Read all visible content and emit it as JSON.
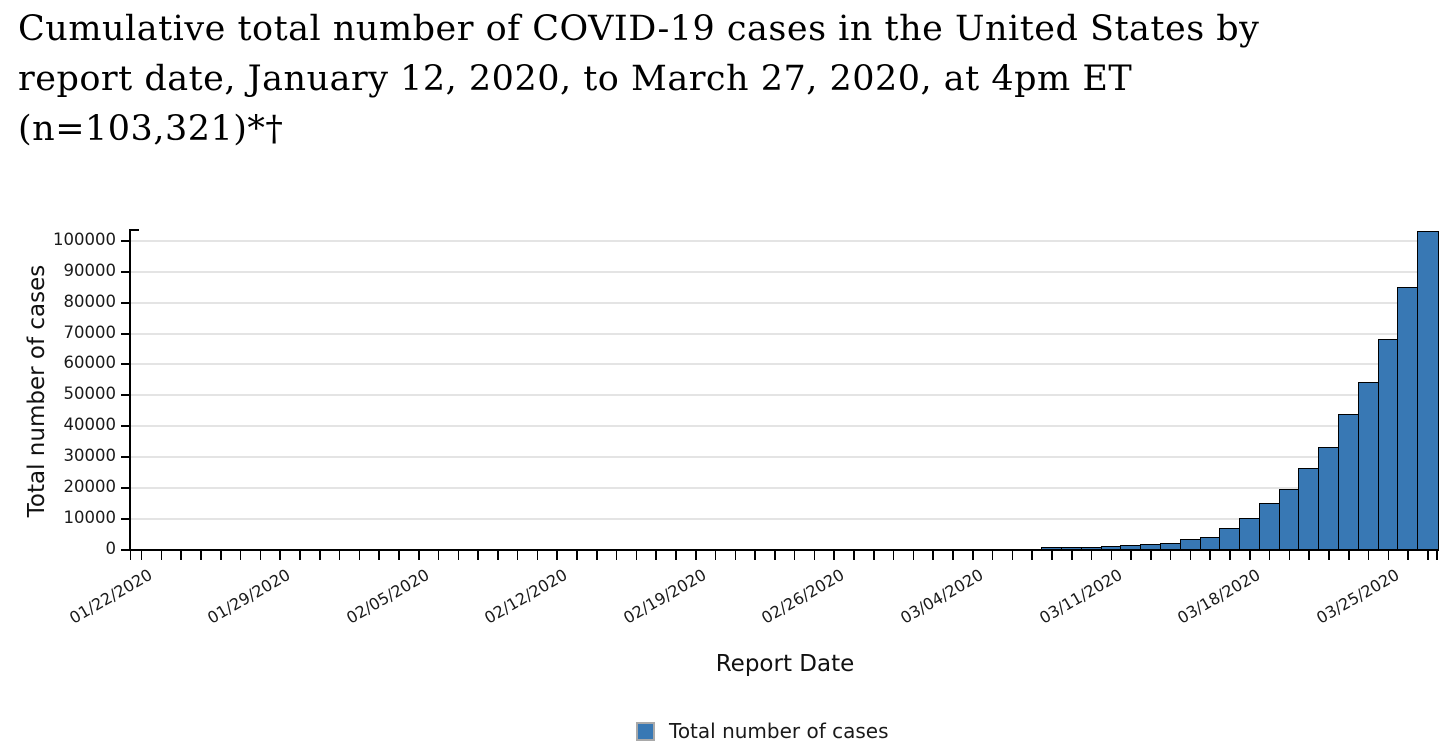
{
  "title": {
    "lines": [
      "Cumulative total number of COVID-19 cases in the United States by",
      "report date, January 12, 2020, to March 27, 2020, at 4pm ET",
      "(n=103,321)*†"
    ],
    "full": "Cumulative total number of COVID-19 cases in the United States by report date, January 12, 2020, to March 27, 2020, at 4pm ET (n=103,321)*†"
  },
  "chart_data": {
    "type": "bar",
    "title": "Cumulative total number of COVID-19 cases in the United States by report date, January 12, 2020, to March 27, 2020, at 4pm ET (n=103,321)*†",
    "xlabel": "Report Date",
    "ylabel": "Total number of cases",
    "x": [
      "01/22/2020",
      "01/23/2020",
      "01/24/2020",
      "01/25/2020",
      "01/26/2020",
      "01/27/2020",
      "01/28/2020",
      "01/29/2020",
      "01/30/2020",
      "01/31/2020",
      "02/01/2020",
      "02/02/2020",
      "02/03/2020",
      "02/04/2020",
      "02/05/2020",
      "02/06/2020",
      "02/07/2020",
      "02/08/2020",
      "02/09/2020",
      "02/10/2020",
      "02/11/2020",
      "02/12/2020",
      "02/13/2020",
      "02/14/2020",
      "02/15/2020",
      "02/16/2020",
      "02/17/2020",
      "02/18/2020",
      "02/19/2020",
      "02/20/2020",
      "02/21/2020",
      "02/22/2020",
      "02/23/2020",
      "02/24/2020",
      "02/25/2020",
      "02/26/2020",
      "02/27/2020",
      "02/28/2020",
      "02/29/2020",
      "03/01/2020",
      "03/02/2020",
      "03/03/2020",
      "03/04/2020",
      "03/05/2020",
      "03/06/2020",
      "03/07/2020",
      "03/08/2020",
      "03/09/2020",
      "03/10/2020",
      "03/11/2020",
      "03/12/2020",
      "03/13/2020",
      "03/14/2020",
      "03/15/2020",
      "03/16/2020",
      "03/17/2020",
      "03/18/2020",
      "03/19/2020",
      "03/20/2020",
      "03/21/2020",
      "03/22/2020",
      "03/23/2020",
      "03/24/2020",
      "03/25/2020",
      "03/26/2020",
      "03/27/2020"
    ],
    "values": [
      1,
      1,
      2,
      2,
      5,
      5,
      5,
      5,
      5,
      7,
      8,
      8,
      11,
      11,
      11,
      11,
      12,
      12,
      12,
      12,
      13,
      13,
      13,
      15,
      15,
      15,
      15,
      15,
      15,
      15,
      15,
      15,
      15,
      35,
      35,
      59,
      59,
      59,
      62,
      62,
      91,
      108,
      129,
      148,
      213,
      213,
      423,
      647,
      938,
      1215,
      1629,
      1896,
      2179,
      3487,
      4226,
      7038,
      10442,
      15219,
      19624,
      26747,
      33404,
      44183,
      54453,
      68440,
      85356,
      103321
    ],
    "series_name": "Total number of cases",
    "x_tick_labels": [
      "01/22/2020",
      "01/29/2020",
      "02/05/2020",
      "02/12/2020",
      "02/19/2020",
      "02/26/2020",
      "03/04/2020",
      "03/11/2020",
      "03/18/2020",
      "03/25/2020"
    ],
    "x_tick_label_interval_days": 7,
    "y_ticks": [
      0,
      10000,
      20000,
      30000,
      40000,
      50000,
      60000,
      70000,
      80000,
      90000,
      100000
    ],
    "ylim": [
      0,
      103321
    ],
    "grid": "horizontal",
    "gridline_color": "#e4e4e4",
    "bar_color": "#3878b4",
    "bar_border_color": "#000000",
    "legend": {
      "label": "Total number of cases",
      "position": "bottom-center",
      "swatch_color": "#3878b4",
      "swatch_border_color": "#a9a9a9"
    }
  }
}
